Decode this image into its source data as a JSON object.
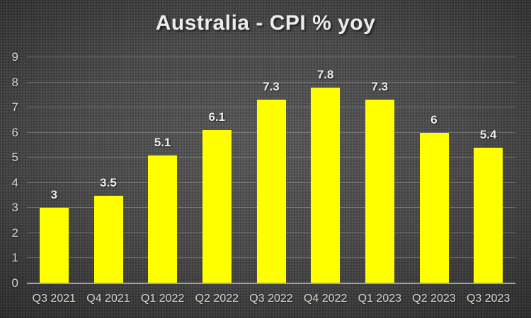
{
  "chart_data": {
    "type": "bar",
    "title": "Australia - CPI % yoy",
    "categories": [
      "Q3 2021",
      "Q4 2021",
      "Q1 2022",
      "Q2 2022",
      "Q3 2022",
      "Q4 2022",
      "Q1 2023",
      "Q2 2023",
      "Q3 2023"
    ],
    "values": [
      3,
      3.5,
      5.1,
      6.1,
      7.3,
      7.8,
      7.3,
      6,
      5.4
    ],
    "data_labels": [
      "3",
      "3.5",
      "5.1",
      "6.1",
      "7.3",
      "7.8",
      "7.3",
      "6",
      "5.4"
    ],
    "xlabel": "",
    "ylabel": "",
    "ylim": [
      0,
      9
    ],
    "y_ticks": [
      0,
      1,
      2,
      3,
      4,
      5,
      6,
      7,
      8,
      9
    ],
    "grid": true,
    "legend_position": "none",
    "bar_color": "#ffff00",
    "background_color": "#3f3f3f",
    "text_color": "#d6d6d6",
    "gridline_color": "rgba(255,255,255,0.22)",
    "axis_line_color": "#a3a3a3"
  }
}
